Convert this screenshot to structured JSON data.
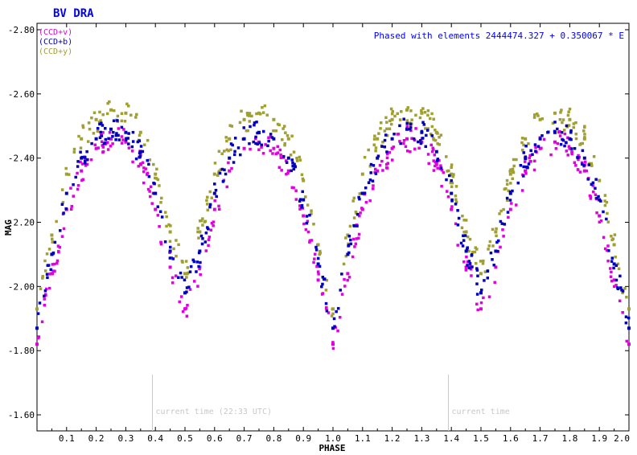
{
  "chart_data": {
    "type": "scatter",
    "title": "BV DRA",
    "annotation": "Phased with elements 2444474.327 + 0.350067 * E",
    "xlabel": "PHASE",
    "ylabel": "MAG",
    "xlim": [
      0.0,
      2.0
    ],
    "ylim": [
      -1.55,
      -2.82
    ],
    "y_inverted": true,
    "grid": false,
    "legend_position": "top-left",
    "x_ticks": [
      "0.1",
      "0.2",
      "0.3",
      "0.4",
      "0.5",
      "0.6",
      "0.7",
      "0.8",
      "0.9",
      "1.0",
      "1.1",
      "1.2",
      "1.3",
      "1.4",
      "1.5",
      "1.6",
      "1.7",
      "1.8",
      "1.9",
      "2.0"
    ],
    "y_ticks": [
      "-2.80",
      "-2.60",
      "-2.40",
      "-2.20",
      "-2.00",
      "-1.80",
      "-1.60"
    ],
    "series": [
      {
        "name": "(CCD+v)",
        "color": "#e000e0",
        "x": [
          0.0,
          0.05,
          0.1,
          0.15,
          0.2,
          0.25,
          0.3,
          0.35,
          0.4,
          0.45,
          0.5,
          0.55,
          0.6,
          0.65,
          0.7,
          0.75,
          0.8,
          0.85,
          0.9,
          0.95,
          1.0,
          1.05,
          1.1,
          1.15,
          1.2,
          1.25,
          1.3,
          1.35,
          1.4,
          1.45,
          1.5,
          1.55,
          1.6,
          1.65,
          1.7,
          1.75,
          1.8,
          1.85,
          1.9,
          1.95,
          2.0
        ],
        "y": [
          -1.82,
          -2.04,
          -2.24,
          -2.36,
          -2.43,
          -2.46,
          -2.45,
          -2.38,
          -2.24,
          -2.06,
          -1.93,
          -2.06,
          -2.24,
          -2.36,
          -2.43,
          -2.45,
          -2.43,
          -2.36,
          -2.22,
          -2.02,
          -1.82,
          -2.04,
          -2.24,
          -2.36,
          -2.43,
          -2.46,
          -2.45,
          -2.38,
          -2.24,
          -2.06,
          -1.93,
          -2.06,
          -2.24,
          -2.36,
          -2.43,
          -2.45,
          -2.43,
          -2.36,
          -2.22,
          -2.02,
          -1.82
        ]
      },
      {
        "name": "(CCD+b)",
        "color": "#0000c0",
        "x": [
          0.0,
          0.05,
          0.1,
          0.15,
          0.2,
          0.25,
          0.3,
          0.35,
          0.4,
          0.45,
          0.5,
          0.55,
          0.6,
          0.65,
          0.7,
          0.75,
          0.8,
          0.85,
          0.9,
          0.95,
          1.0,
          1.05,
          1.1,
          1.15,
          1.2,
          1.25,
          1.3,
          1.35,
          1.4,
          1.45,
          1.5,
          1.55,
          1.6,
          1.65,
          1.7,
          1.75,
          1.8,
          1.85,
          1.9,
          1.95,
          2.0
        ],
        "y": [
          -1.87,
          -2.1,
          -2.29,
          -2.4,
          -2.46,
          -2.49,
          -2.48,
          -2.42,
          -2.29,
          -2.11,
          -1.98,
          -2.11,
          -2.29,
          -2.4,
          -2.46,
          -2.48,
          -2.46,
          -2.4,
          -2.27,
          -2.07,
          -1.87,
          -2.1,
          -2.29,
          -2.4,
          -2.46,
          -2.49,
          -2.48,
          -2.42,
          -2.29,
          -2.11,
          -1.98,
          -2.11,
          -2.29,
          -2.4,
          -2.46,
          -2.48,
          -2.46,
          -2.4,
          -2.27,
          -2.07,
          -1.87
        ]
      },
      {
        "name": "(CCD+y)",
        "color": "#a0a030",
        "x": [
          0.0,
          0.05,
          0.1,
          0.15,
          0.2,
          0.25,
          0.3,
          0.35,
          0.4,
          0.45,
          0.5,
          0.55,
          0.6,
          0.65,
          0.7,
          0.75,
          0.8,
          0.85,
          0.9,
          0.95,
          1.0,
          1.05,
          1.1,
          1.15,
          1.2,
          1.25,
          1.3,
          1.35,
          1.4,
          1.45,
          1.5,
          1.55,
          1.6,
          1.65,
          1.7,
          1.75,
          1.8,
          1.85,
          1.9,
          1.95,
          2.0
        ],
        "y": [
          -1.93,
          -2.16,
          -2.35,
          -2.46,
          -2.52,
          -2.55,
          -2.54,
          -2.48,
          -2.35,
          -2.17,
          -2.04,
          -2.17,
          -2.35,
          -2.46,
          -2.52,
          -2.54,
          -2.52,
          -2.46,
          -2.33,
          -2.13,
          -1.93,
          -2.16,
          -2.35,
          -2.46,
          -2.52,
          -2.55,
          -2.54,
          -2.48,
          -2.35,
          -2.17,
          -2.04,
          -2.17,
          -2.35,
          -2.46,
          -2.52,
          -2.54,
          -2.52,
          -2.46,
          -2.33,
          -2.13,
          -1.93
        ]
      }
    ],
    "time_markers": [
      {
        "phase": 0.39,
        "label": "current time (22:33 UTC)"
      },
      {
        "phase": 1.39,
        "label": "current time"
      }
    ]
  }
}
